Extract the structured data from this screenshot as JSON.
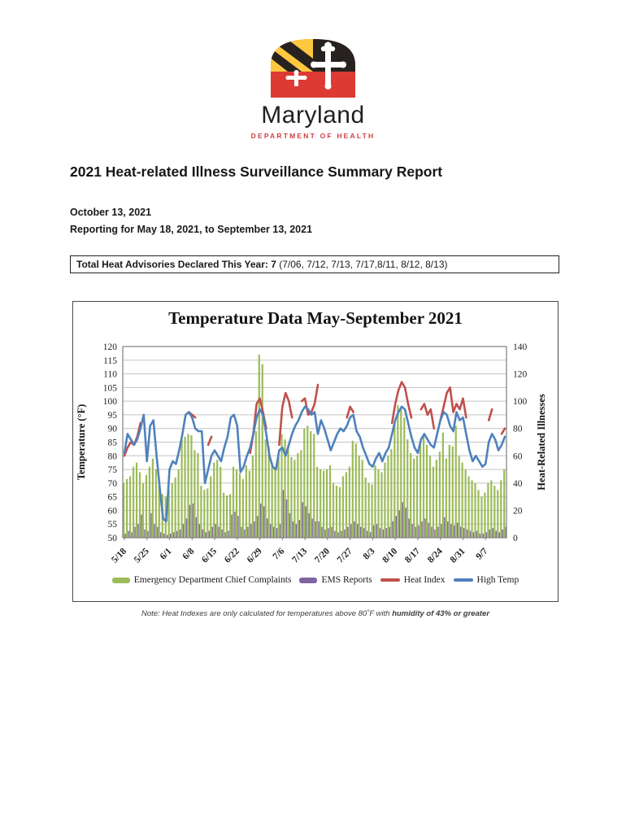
{
  "logo": {
    "state_name": "Maryland",
    "department": "DEPARTMENT OF HEALTH",
    "flag_colors": {
      "yellow": "#fdc740",
      "black": "#27211f",
      "red": "#dd3a34",
      "white": "#ffffff"
    }
  },
  "report": {
    "title": "2021 Heat-related Illness Surveillance Summary Report",
    "date_line": "October 13, 2021",
    "reporting_line": "Reporting for May 18, 2021, to September 13, 2021"
  },
  "advisories": {
    "label_bold": "Total Heat Advisories Declared This Year: 7",
    "dates_list": " (7/06, 7/12, 7/13, 7/17,8/11, 8/12, 8/13)"
  },
  "note": {
    "prefix": "Note: Heat Indexes are only calculated for temperatures above 80˚F with ",
    "bold": "humidity of 43% or greater"
  },
  "chart_data": {
    "type": "bar+line combo",
    "title": "Temperature Data May-September 2021",
    "legend_position": "bottom",
    "grid": true,
    "left_axis": {
      "label": "Temperature (°F)",
      "min": 50,
      "max": 120,
      "tick_step": 5
    },
    "right_axis": {
      "label": "Heat-Related Illnesses",
      "min": 0,
      "max": 140,
      "tick_step": 20
    },
    "x_tick_labels": [
      "5/18",
      "5/25",
      "6/1",
      "6/8",
      "6/15",
      "6/22",
      "6/29",
      "7/6",
      "7/13",
      "7/20",
      "7/27",
      "8/3",
      "8/10",
      "8/17",
      "8/24",
      "8/31",
      "9/7"
    ],
    "dates": [
      "5/18",
      "5/19",
      "5/20",
      "5/21",
      "5/22",
      "5/23",
      "5/24",
      "5/25",
      "5/26",
      "5/27",
      "5/28",
      "5/29",
      "5/30",
      "5/31",
      "6/1",
      "6/2",
      "6/3",
      "6/4",
      "6/5",
      "6/6",
      "6/7",
      "6/8",
      "6/9",
      "6/10",
      "6/11",
      "6/12",
      "6/13",
      "6/14",
      "6/15",
      "6/16",
      "6/17",
      "6/18",
      "6/19",
      "6/20",
      "6/21",
      "6/22",
      "6/23",
      "6/24",
      "6/25",
      "6/26",
      "6/27",
      "6/28",
      "6/29",
      "6/30",
      "7/1",
      "7/2",
      "7/3",
      "7/4",
      "7/5",
      "7/6",
      "7/7",
      "7/8",
      "7/9",
      "7/10",
      "7/11",
      "7/12",
      "7/13",
      "7/14",
      "7/15",
      "7/16",
      "7/17",
      "7/18",
      "7/19",
      "7/20",
      "7/21",
      "7/22",
      "7/23",
      "7/24",
      "7/25",
      "7/26",
      "7/27",
      "7/28",
      "7/29",
      "7/30",
      "7/31",
      "8/1",
      "8/2",
      "8/3",
      "8/4",
      "8/5",
      "8/6",
      "8/7",
      "8/8",
      "8/9",
      "8/10",
      "8/11",
      "8/12",
      "8/13",
      "8/14",
      "8/15",
      "8/16",
      "8/17",
      "8/18",
      "8/19",
      "8/20",
      "8/21",
      "8/22",
      "8/23",
      "8/24",
      "8/25",
      "8/26",
      "8/27",
      "8/28",
      "8/29",
      "8/30",
      "8/31",
      "9/1",
      "9/2",
      "9/3",
      "9/4",
      "9/5",
      "9/6",
      "9/7",
      "9/8",
      "9/9",
      "9/10",
      "9/11",
      "9/12",
      "9/13"
    ],
    "series": [
      {
        "name": "Emergency Department Chief Complaints",
        "type": "bar",
        "axis": "right",
        "color": "#9bbb59",
        "values": [
          40,
          43,
          45,
          52,
          55,
          48,
          40,
          46,
          52,
          58,
          50,
          38,
          32,
          30,
          35,
          40,
          44,
          50,
          72,
          74,
          76,
          75,
          64,
          62,
          38,
          35,
          36,
          45,
          55,
          57,
          52,
          33,
          31,
          32,
          52,
          50,
          47,
          43,
          53,
          49,
          60,
          78,
          134,
          127,
          72,
          67,
          55,
          50,
          60,
          76,
          72,
          68,
          59,
          57,
          62,
          64,
          80,
          82,
          78,
          76,
          52,
          50,
          49,
          50,
          53,
          40,
          38,
          37,
          45,
          48,
          52,
          71,
          69,
          60,
          57,
          44,
          40,
          39,
          53,
          50,
          48,
          55,
          60,
          65,
          85,
          97,
          95,
          88,
          72,
          62,
          58,
          60,
          70,
          75,
          68,
          60,
          52,
          57,
          63,
          77,
          58,
          68,
          67,
          82,
          60,
          55,
          50,
          45,
          42,
          40,
          35,
          30,
          33,
          40,
          42,
          38,
          35,
          42,
          50
        ]
      },
      {
        "name": "EMS Reports",
        "type": "bar",
        "axis": "right",
        "color": "#8064a2",
        "values": [
          3,
          5,
          4,
          8,
          10,
          17,
          6,
          5,
          18,
          10,
          8,
          4,
          3,
          2,
          3,
          4,
          5,
          6,
          10,
          14,
          24,
          25,
          15,
          10,
          6,
          4,
          5,
          8,
          10,
          8,
          6,
          4,
          5,
          17,
          19,
          16,
          8,
          6,
          8,
          10,
          12,
          16,
          25,
          23,
          14,
          10,
          8,
          7,
          10,
          35,
          28,
          18,
          12,
          10,
          13,
          26,
          23,
          18,
          14,
          12,
          12,
          8,
          6,
          7,
          8,
          5,
          4,
          5,
          6,
          8,
          10,
          12,
          10,
          8,
          7,
          5,
          4,
          9,
          10,
          7,
          6,
          7,
          8,
          12,
          16,
          20,
          26,
          22,
          14,
          10,
          8,
          9,
          12,
          14,
          11,
          8,
          6,
          8,
          10,
          15,
          12,
          10,
          9,
          11,
          8,
          7,
          6,
          5,
          4,
          5,
          3,
          3,
          4,
          6,
          7,
          5,
          4,
          6,
          8
        ]
      },
      {
        "name": "Heat Index",
        "type": "line",
        "axis": "left",
        "color": "#c0504d",
        "values": [
          80,
          83,
          85,
          84,
          87,
          92,
          null,
          null,
          null,
          null,
          null,
          null,
          null,
          null,
          null,
          null,
          null,
          null,
          null,
          null,
          96,
          95,
          94,
          null,
          null,
          null,
          84,
          87,
          null,
          null,
          null,
          null,
          null,
          null,
          null,
          null,
          null,
          null,
          null,
          81,
          88,
          99,
          101,
          96,
          90,
          null,
          null,
          null,
          84,
          98,
          103,
          100,
          94,
          null,
          null,
          100,
          101,
          95,
          96,
          99,
          106,
          null,
          null,
          null,
          null,
          null,
          null,
          null,
          null,
          94,
          98,
          96,
          null,
          null,
          null,
          null,
          null,
          null,
          null,
          null,
          null,
          null,
          null,
          92,
          99,
          104,
          107,
          105,
          99,
          94,
          null,
          null,
          97,
          99,
          95,
          97,
          90,
          null,
          93,
          98,
          103,
          105,
          96,
          99,
          97,
          101,
          94,
          null,
          null,
          null,
          null,
          null,
          null,
          93,
          97,
          null,
          null,
          88,
          90
        ]
      },
      {
        "name": "High Temp",
        "type": "line",
        "axis": "left",
        "color": "#4f81bd",
        "values": [
          81,
          88,
          86,
          84,
          86,
          90,
          95,
          78,
          91,
          93,
          80,
          68,
          57,
          56,
          75,
          78,
          77,
          82,
          88,
          95,
          96,
          94,
          90,
          89,
          89,
          70,
          75,
          80,
          82,
          80,
          78,
          83,
          87,
          94,
          95,
          91,
          74,
          76,
          80,
          83,
          88,
          94,
          97,
          95,
          88,
          80,
          76,
          75,
          82,
          83,
          80,
          84,
          88,
          91,
          93,
          96,
          98,
          97,
          95,
          96,
          88,
          93,
          90,
          86,
          82,
          85,
          88,
          90,
          89,
          91,
          94,
          95,
          89,
          87,
          83,
          80,
          77,
          76,
          79,
          81,
          78,
          81,
          83,
          88,
          93,
          96,
          98,
          97,
          92,
          87,
          83,
          81,
          86,
          88,
          86,
          84,
          83,
          88,
          93,
          96,
          95,
          91,
          89,
          96,
          93,
          94,
          88,
          82,
          78,
          80,
          78,
          76,
          77,
          85,
          88,
          86,
          82,
          84,
          87
        ]
      }
    ]
  }
}
